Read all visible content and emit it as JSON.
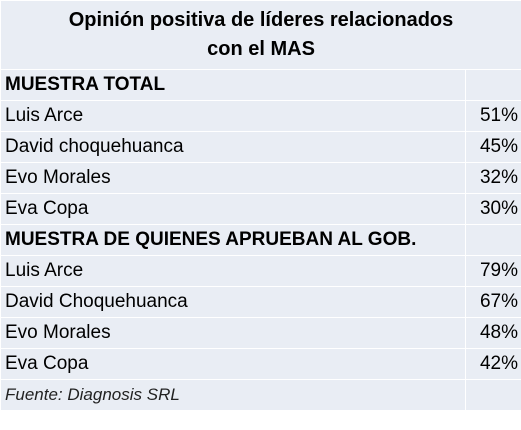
{
  "chart_data": {
    "type": "table",
    "title_lines": [
      "Opinión positiva de líderes relacionados",
      "con el MAS"
    ],
    "sections": [
      {
        "label": "MUESTRA TOTAL",
        "rows": [
          {
            "name": "Luis Arce",
            "value": 51,
            "display": "51%"
          },
          {
            "name": "David choquehuanca",
            "value": 45,
            "display": "45%"
          },
          {
            "name": "Evo Morales",
            "value": 32,
            "display": "32%"
          },
          {
            "name": "Eva Copa",
            "value": 30,
            "display": "30%"
          }
        ]
      },
      {
        "label": "MUESTRA DE QUIENES APRUEBAN AL GOB.",
        "rows": [
          {
            "name": "Luis Arce",
            "value": 79,
            "display": "79%"
          },
          {
            "name": "David Choquehuanca",
            "value": 67,
            "display": "67%"
          },
          {
            "name": "Evo Morales",
            "value": 48,
            "display": "48%"
          },
          {
            "name": "Eva Copa",
            "value": 42,
            "display": "42%"
          }
        ]
      }
    ],
    "source": "Fuente: Diagnosis SRL"
  },
  "colors": {
    "cell_background": "#e9edf4",
    "grid_lines": "#ffffff",
    "text": "#000000"
  }
}
